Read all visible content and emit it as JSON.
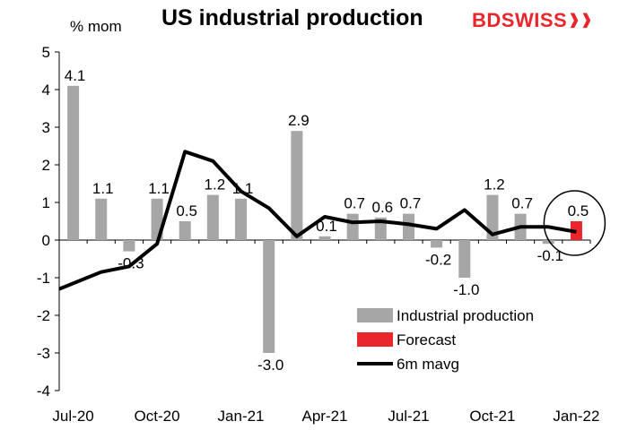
{
  "title": "US industrial production",
  "y_unit_label": "% mom",
  "logo": {
    "part1": "BD",
    "part2": "SWISS",
    "icon": "double-chevron-right-icon"
  },
  "chart_data": {
    "type": "bar",
    "title": "US industrial production",
    "ylabel": "% mom",
    "ylim": [
      -4,
      5
    ],
    "yticks": [
      5,
      4,
      3,
      2,
      1,
      0,
      -1,
      -2,
      -3,
      -4
    ],
    "x_tick_labels": [
      "Jul-20",
      "Oct-20",
      "Jan-21",
      "Apr-21",
      "Jul-21",
      "Oct-21",
      "Jan-22"
    ],
    "x_tick_index": [
      0,
      3,
      6,
      9,
      12,
      15,
      18
    ],
    "num_periods": 19,
    "grid": false,
    "legend_position": "bottom-right",
    "series": [
      {
        "name": "Industrial production",
        "type": "bar",
        "color": "#a6a6a6",
        "values": [
          4.1,
          1.1,
          -0.3,
          1.1,
          0.5,
          1.2,
          1.1,
          -3.0,
          2.9,
          0.1,
          0.7,
          0.6,
          0.7,
          -0.2,
          -1.0,
          1.2,
          0.7,
          -0.1,
          null
        ],
        "labels": [
          "4.1",
          "1.1",
          "-0.3",
          "1.1",
          "0.5",
          "1.2",
          "1.1",
          "-3.0",
          "2.9",
          "0.1",
          "0.7",
          "0.6",
          "0.7",
          "-0.2",
          "-1.0",
          "1.2",
          "0.7",
          "-0.1",
          null
        ]
      },
      {
        "name": "Forecast",
        "type": "bar",
        "color": "#e8262c",
        "values": [
          null,
          null,
          null,
          null,
          null,
          null,
          null,
          null,
          null,
          null,
          null,
          null,
          null,
          null,
          null,
          null,
          null,
          null,
          0.5
        ],
        "labels": [
          null,
          null,
          null,
          null,
          null,
          null,
          null,
          null,
          null,
          null,
          null,
          null,
          null,
          null,
          null,
          null,
          null,
          null,
          "0.5"
        ]
      },
      {
        "name": "6m mavg",
        "type": "line",
        "color": "#000000",
        "values": [
          -1.3,
          -0.85,
          -0.7,
          -0.1,
          2.35,
          2.1,
          1.3,
          0.85,
          0.1,
          0.62,
          0.47,
          0.5,
          0.42,
          0.3,
          0.8,
          0.15,
          0.35,
          0.35,
          0.22
        ]
      }
    ]
  }
}
